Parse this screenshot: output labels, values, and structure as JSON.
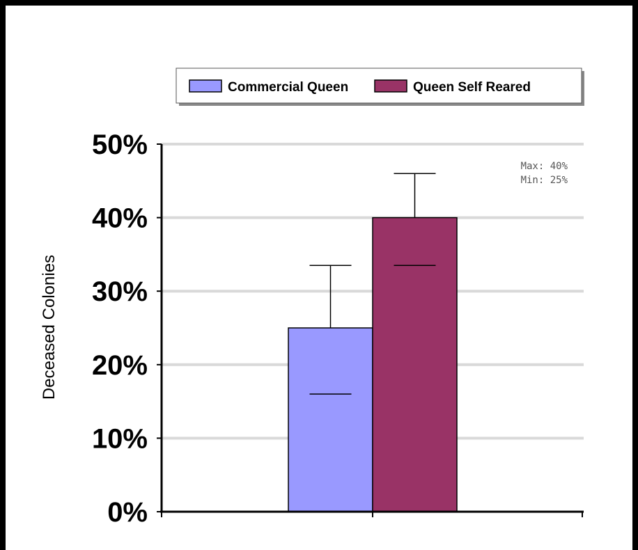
{
  "chart_data": {
    "type": "bar",
    "categories": [
      ""
    ],
    "series": [
      {
        "name": "Commercial Queen",
        "values": [
          25
        ],
        "error_upper": [
          33.5
        ],
        "error_lower": [
          16
        ],
        "color": "#9999ff"
      },
      {
        "name": "Queen Self Reared",
        "values": [
          40
        ],
        "error_upper": [
          46
        ],
        "error_lower": [
          33.5
        ],
        "color": "#993366"
      }
    ],
    "title": "",
    "xlabel": "",
    "ylabel": "Deceased Colonies",
    "ylim": [
      0,
      50
    ],
    "yticks": [
      0,
      10,
      20,
      30,
      40,
      50
    ],
    "ytick_labels": [
      "0%",
      "10%",
      "20%",
      "30%",
      "40%",
      "50%"
    ],
    "grid": true,
    "legend_position": "top",
    "annotations": [
      "Max: 40%",
      "Min: 25%"
    ]
  }
}
